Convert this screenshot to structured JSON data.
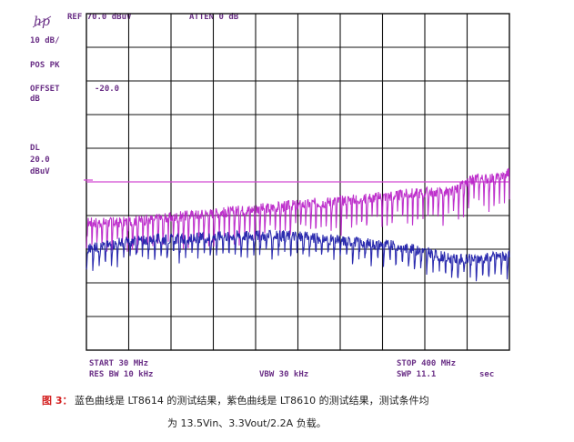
{
  "header": {
    "ref": "REF 70.0 dBuV",
    "atten": "ATTEN 0 dB"
  },
  "left_panel": {
    "scale": "10 dB/",
    "detector": "POS PK",
    "offset_label": "OFFSET",
    "offset_unit": "dB",
    "offset_value": "-20.0",
    "dl_label": "DL",
    "dl_value": "20.0",
    "dl_unit": "dBuV"
  },
  "footer": {
    "start": "START 30 MHz",
    "rbw": "RES BW 10 kHz",
    "vbw": "VBW 30 kHz",
    "stop": "STOP 400 MHz",
    "swp": "SWP 11.1",
    "swp_unit": "sec"
  },
  "caption": {
    "fig": "图 3：",
    "line1": "蓝色曲线是 LT8614 的测试结果，紫色曲线是 LT8610 的测试结果，测试条件均",
    "line2": "为 13.5Vin、3.3Vout/2.2A 负载。"
  },
  "chart_data": {
    "type": "line",
    "xlabel": "",
    "ylabel": "",
    "x_unit": "MHz",
    "y_unit": "dBuV",
    "xlim": [
      30,
      400
    ],
    "ylim": [
      -30,
      70
    ],
    "grid": true,
    "limit_line": {
      "label": "DL",
      "value": 20.0,
      "color": "#d24bd2"
    },
    "series": [
      {
        "color": "#b820c8",
        "x": [
          30,
          60,
          90,
          120,
          150,
          180,
          210,
          240,
          270,
          300,
          330,
          350,
          370,
          390,
          400
        ],
        "y": [
          8,
          8,
          9,
          10,
          11,
          12,
          13,
          14,
          15,
          16,
          17,
          17,
          21,
          21,
          23
        ]
      },
      {
        "color": "#1a1aa8",
        "x": [
          30,
          60,
          90,
          120,
          150,
          180,
          210,
          240,
          270,
          300,
          330,
          350,
          370,
          390,
          400
        ],
        "y": [
          0,
          2,
          3,
          3,
          4,
          4,
          4,
          3,
          2,
          1,
          -1,
          -3,
          -3,
          -2,
          -2
        ]
      }
    ]
  }
}
